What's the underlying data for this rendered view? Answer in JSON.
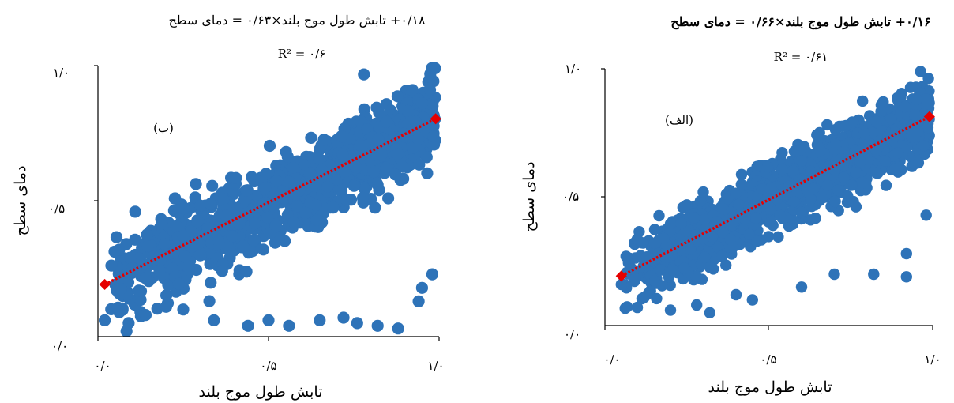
{
  "colors": {
    "points": "#2e73b8",
    "fit_line": "#e60000",
    "axes": "#000000",
    "background": "#ffffff"
  },
  "chart_data": [
    {
      "type": "scatter",
      "panel_label": "(الف)",
      "title": "۰/۱۶+ تابش طول موج بلند×۰/۶۶ = دمای سطح",
      "r2": "R² = ۰/۶۱",
      "xlabel": "تابش طول موج بلند",
      "ylabel": "دمای سطح",
      "xlim": [
        0,
        1
      ],
      "ylim": [
        0,
        1
      ],
      "x_ticks": [
        0,
        0.5,
        1
      ],
      "y_ticks": [
        0,
        0.5,
        1
      ],
      "x_tick_labels": [
        "۰/۰",
        "۰/۵",
        "۱/۰"
      ],
      "y_tick_labels": [
        "۰/۰",
        "۰/۵",
        "۱/۰"
      ],
      "grid": false,
      "trendline": {
        "slope": 0.66,
        "intercept": 0.16,
        "x_start": 0.05,
        "x_end": 0.99
      },
      "point_cloud": {
        "x_range": [
          0.05,
          0.99
        ],
        "residual_spread": 0.07,
        "count": 1300
      },
      "outliers": [
        [
          0.05,
          0.16
        ],
        [
          0.12,
          0.11
        ],
        [
          0.2,
          0.06
        ],
        [
          0.28,
          0.08
        ],
        [
          0.32,
          0.05
        ],
        [
          0.4,
          0.12
        ],
        [
          0.45,
          0.1
        ],
        [
          0.6,
          0.15
        ],
        [
          0.7,
          0.2
        ],
        [
          0.82,
          0.2
        ],
        [
          0.98,
          0.43
        ],
        [
          0.25,
          0.47
        ],
        [
          0.92,
          0.28
        ],
        [
          0.92,
          0.19
        ],
        [
          0.3,
          0.52
        ]
      ]
    },
    {
      "type": "scatter",
      "panel_label": "(ب)",
      "title": "۰/۱۸+ تابش طول موج بلند×۰/۶۳ = دمای سطح",
      "r2": "R² = ۰/۶",
      "xlabel": "تابش طول موج بلند",
      "ylabel": "دمای سطح",
      "xlim": [
        0,
        1
      ],
      "ylim": [
        0,
        1
      ],
      "x_ticks": [
        0,
        0.5,
        1
      ],
      "y_ticks": [
        0,
        0.5,
        1
      ],
      "x_tick_labels": [
        "۰/۰",
        "۰/۵",
        "۱/۰"
      ],
      "y_tick_labels": [
        "۰/۰",
        "۰/۵",
        "۱/۰"
      ],
      "grid": false,
      "trendline": {
        "slope": 0.63,
        "intercept": 0.18,
        "x_start": 0.02,
        "x_end": 0.99
      },
      "point_cloud": {
        "x_range": [
          0.03,
          0.99
        ],
        "residual_spread": 0.075,
        "count": 1300
      },
      "outliers": [
        [
          0.02,
          0.06
        ],
        [
          0.09,
          0.05
        ],
        [
          0.14,
          0.08
        ],
        [
          0.2,
          0.11
        ],
        [
          0.25,
          0.1
        ],
        [
          0.34,
          0.06
        ],
        [
          0.44,
          0.04
        ],
        [
          0.5,
          0.06
        ],
        [
          0.56,
          0.04
        ],
        [
          0.65,
          0.06
        ],
        [
          0.72,
          0.07
        ],
        [
          0.76,
          0.05
        ],
        [
          0.82,
          0.04
        ],
        [
          0.88,
          0.03
        ],
        [
          0.94,
          0.13
        ],
        [
          0.98,
          0.23
        ],
        [
          0.95,
          0.18
        ],
        [
          0.12,
          0.17
        ],
        [
          0.3,
          0.3
        ],
        [
          0.33,
          0.49
        ]
      ]
    }
  ]
}
